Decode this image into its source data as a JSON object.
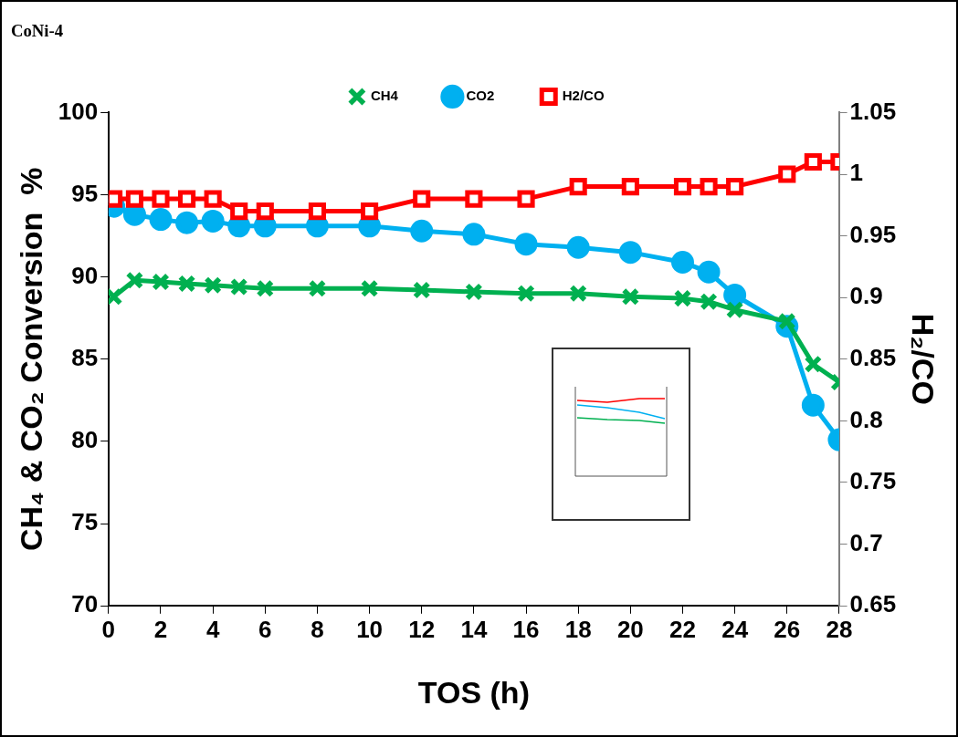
{
  "chart_data": {
    "type": "line",
    "title": "CoNi-4",
    "xlabel": "TOS (h)",
    "ylabel": "CH₄ & CO₂ Conversion  %",
    "y2label": "H₂/CO",
    "xlim": [
      0,
      28
    ],
    "xticks": [
      0,
      2,
      4,
      6,
      8,
      10,
      12,
      14,
      16,
      18,
      20,
      22,
      24,
      26,
      28
    ],
    "ylim": [
      70,
      100
    ],
    "yticks": [
      70,
      75,
      80,
      85,
      90,
      95,
      100
    ],
    "y2lim": [
      0.65,
      1.05
    ],
    "y2ticks": [
      0.65,
      0.7,
      0.75,
      0.8,
      0.85,
      0.9,
      0.95,
      1,
      1.05
    ],
    "grid": false,
    "legend": "top",
    "x": [
      0.2,
      1,
      2,
      3,
      4,
      5,
      6,
      8,
      10,
      12,
      14,
      16,
      18,
      20,
      22,
      23,
      24,
      26,
      27,
      28
    ],
    "series": [
      {
        "name": "CH4",
        "color": "#00b050",
        "marker": "cross",
        "values": [
          88.8,
          89.8,
          89.7,
          89.6,
          89.5,
          89.4,
          89.3,
          89.3,
          89.3,
          89.2,
          89.1,
          89.0,
          89.0,
          88.8,
          88.7,
          88.5,
          88.0,
          87.3,
          84.7,
          83.6
        ]
      },
      {
        "name": "CO2",
        "color": "#00b0f0",
        "marker": "circle",
        "values": [
          94.3,
          93.8,
          93.5,
          93.3,
          93.4,
          93.1,
          93.1,
          93.1,
          93.1,
          92.8,
          92.6,
          92.0,
          91.8,
          91.5,
          90.9,
          90.3,
          88.9,
          87.0,
          82.2,
          80.1
        ]
      },
      {
        "name": "H2/CO",
        "color": "#ff0000",
        "marker": "square",
        "axis": "y2",
        "values": [
          0.98,
          0.98,
          0.98,
          0.98,
          0.98,
          0.97,
          0.97,
          0.97,
          0.97,
          0.98,
          0.98,
          0.98,
          0.99,
          0.99,
          0.99,
          0.99,
          0.99,
          1.0,
          1.01,
          1.01
        ]
      }
    ]
  }
}
